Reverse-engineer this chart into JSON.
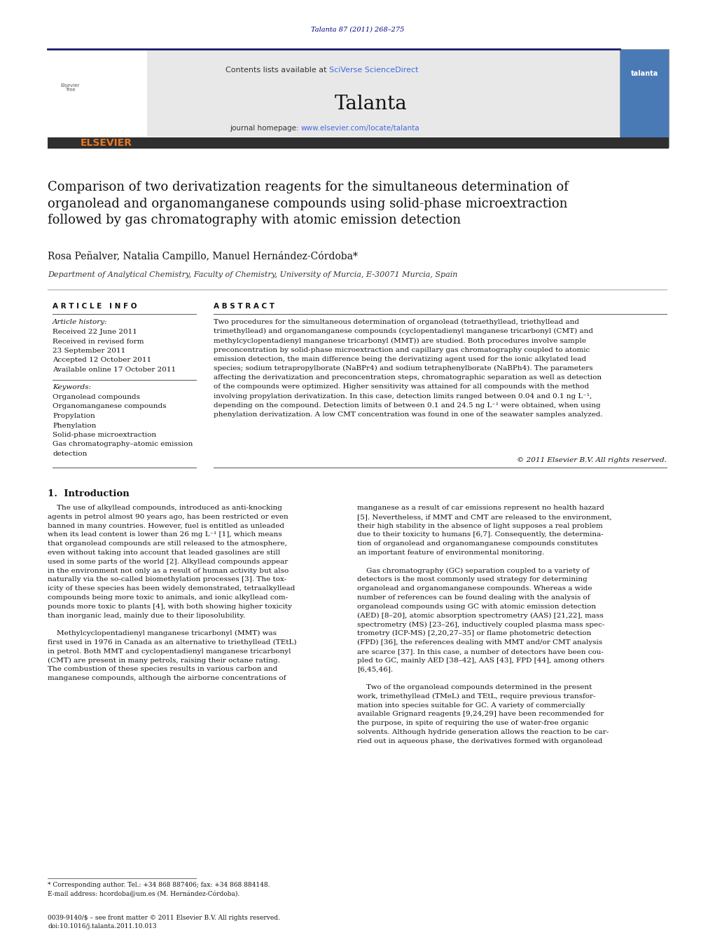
{
  "page_width": 10.21,
  "page_height": 13.51,
  "bg_color": "#ffffff",
  "top_citation": "Talanta 87 (2011) 268–275",
  "top_citation_color": "#000080",
  "header_bg": "#e8e8e8",
  "header_sciverse_color": "#4169e1",
  "journal_name": "Talanta",
  "journal_url_color": "#4169e1",
  "dark_bar_color": "#2f2f2f",
  "article_title": "Comparison of two derivatization reagents for the simultaneous determination of\norganolead and organomanganese compounds using solid-phase microextraction\nfollowed by gas chromatography with atomic emission detection",
  "authors": "Rosa Peñalver, Natalia Campillo, Manuel Hernández-Córdoba*",
  "affiliation": "Department of Analytical Chemistry, Faculty of Chemistry, University of Murcia, E-30071 Murcia, Spain",
  "article_info_label": "A R T I C L E   I N F O",
  "abstract_label": "A B S T R A C T",
  "article_history_label": "Article history:",
  "received_date": "Received 22 June 2011",
  "revised_label": "Received in revised form",
  "revised_date": "23 September 2011",
  "accepted_date": "Accepted 12 October 2011",
  "available_date": "Available online 17 October 2011",
  "keywords_label": "Keywords:",
  "keywords": [
    "Organolead compounds",
    "Organomanganese compounds",
    "Propylation",
    "Phenylation",
    "Solid-phase microextraction",
    "Gas chromatography–atomic emission\ndetection"
  ],
  "abstract_text": "Two procedures for the simultaneous determination of organolead (tetraethyllead, triethyllead and\ntrimethyllead) and organomanganese compounds (cyclopentadienyl manganese tricarbonyl (CMT) and\nmethylcyclopentadienyl manganese tricarbonyl (MMT)) are studied. Both procedures involve sample\npreconcentration by solid-phase microextraction and capillary gas chromatography coupled to atomic\nemission detection, the main difference being the derivatizing agent used for the ionic alkylated lead\nspecies; sodium tetrapropylborate (NaBPr4) and sodium tetraphenylborate (NaBPh4). The parameters\naffecting the derivatization and preconcentration steps, chromatographic separation as well as detection\nof the compounds were optimized. Higher sensitivity was attained for all compounds with the method\ninvolving propylation derivatization. In this case, detection limits ranged between 0.04 and 0.1 ng L⁻¹,\ndepending on the compound. Detection limits of between 0.1 and 24.5 ng L⁻¹ were obtained, when using\nphenylation derivatization. A low CMT concentration was found in one of the seawater samples analyzed.",
  "copyright": "© 2011 Elsevier B.V. All rights reserved.",
  "intro_title": "1.  Introduction",
  "intro_col1_lines": [
    "    The use of alkyllead compounds, introduced as anti-knocking",
    "agents in petrol almost 90 years ago, has been restricted or even",
    "banned in many countries. However, fuel is entitled as unleaded",
    "when its lead content is lower than 26 mg L⁻¹ [1], which means",
    "that organolead compounds are still released to the atmosphere,",
    "even without taking into account that leaded gasolines are still",
    "used in some parts of the world [2]. Alkyllead compounds appear",
    "in the environment not only as a result of human activity but also",
    "naturally via the so-called biomethylation processes [3]. The tox-",
    "icity of these species has been widely demonstrated, tetraalkyllead",
    "compounds being more toxic to animals, and ionic alkyllead com-",
    "pounds more toxic to plants [4], with both showing higher toxicity",
    "than inorganic lead, mainly due to their liposolubility.",
    "",
    "    Methylcyclopentadienyl manganese tricarbonyl (MMT) was",
    "first used in 1976 in Canada as an alternative to triethyllead (TEtL)",
    "in petrol. Both MMT and cyclopentadienyl manganese tricarbonyl",
    "(CMT) are present in many petrols, raising their octane rating.",
    "The combustion of these species results in various carbon and",
    "manganese compounds, although the airborne concentrations of"
  ],
  "intro_col2_lines": [
    "manganese as a result of car emissions represent no health hazard",
    "[5]. Nevertheless, if MMT and CMT are released to the environment,",
    "their high stability in the absence of light supposes a real problem",
    "due to their toxicity to humans [6,7]. Consequently, the determina-",
    "tion of organolead and organomanganese compounds constitutes",
    "an important feature of environmental monitoring.",
    "",
    "    Gas chromatography (GC) separation coupled to a variety of",
    "detectors is the most commonly used strategy for determining",
    "organolead and organomanganese compounds. Whereas a wide",
    "number of references can be found dealing with the analysis of",
    "organolead compounds using GC with atomic emission detection",
    "(AED) [8–20], atomic absorption spectrometry (AAS) [21,22], mass",
    "spectrometry (MS) [23–26], inductively coupled plasma mass spec-",
    "trometry (ICP-MS) [2,20,27–35] or flame photometric detection",
    "(FPD) [36], the references dealing with MMT and/or CMT analysis",
    "are scarce [37]. In this case, a number of detectors have been cou-",
    "pled to GC, mainly AED [38–42], AAS [43], FPD [44], among others",
    "[6,45,46].",
    "",
    "    Two of the organolead compounds determined in the present",
    "work, trimethyllead (TMeL) and TEtL, require previous transfor-",
    "mation into species suitable for GC. A variety of commercially",
    "available Grignard reagents [9,24,29] have been recommended for",
    "the purpose, in spite of requiring the use of water-free organic",
    "solvents. Although hydride generation allows the reaction to be car-",
    "ried out in aqueous phase, the derivatives formed with organolead"
  ],
  "footnote_line1": "* Corresponding author. Tel.: +34 868 887406; fax: +34 868 884148.",
  "footnote_line2": "E-mail address: hcordoba@um.es (M. Hernández-Córdoba).",
  "footer_line1": "0039-9140/$ – see front matter © 2011 Elsevier B.V. All rights reserved.",
  "footer_line2": "doi:10.1016/j.talanta.2011.10.013",
  "link_color": "#0000cd",
  "elsevier_orange": "#e87722",
  "navy": "#1a1a6e"
}
